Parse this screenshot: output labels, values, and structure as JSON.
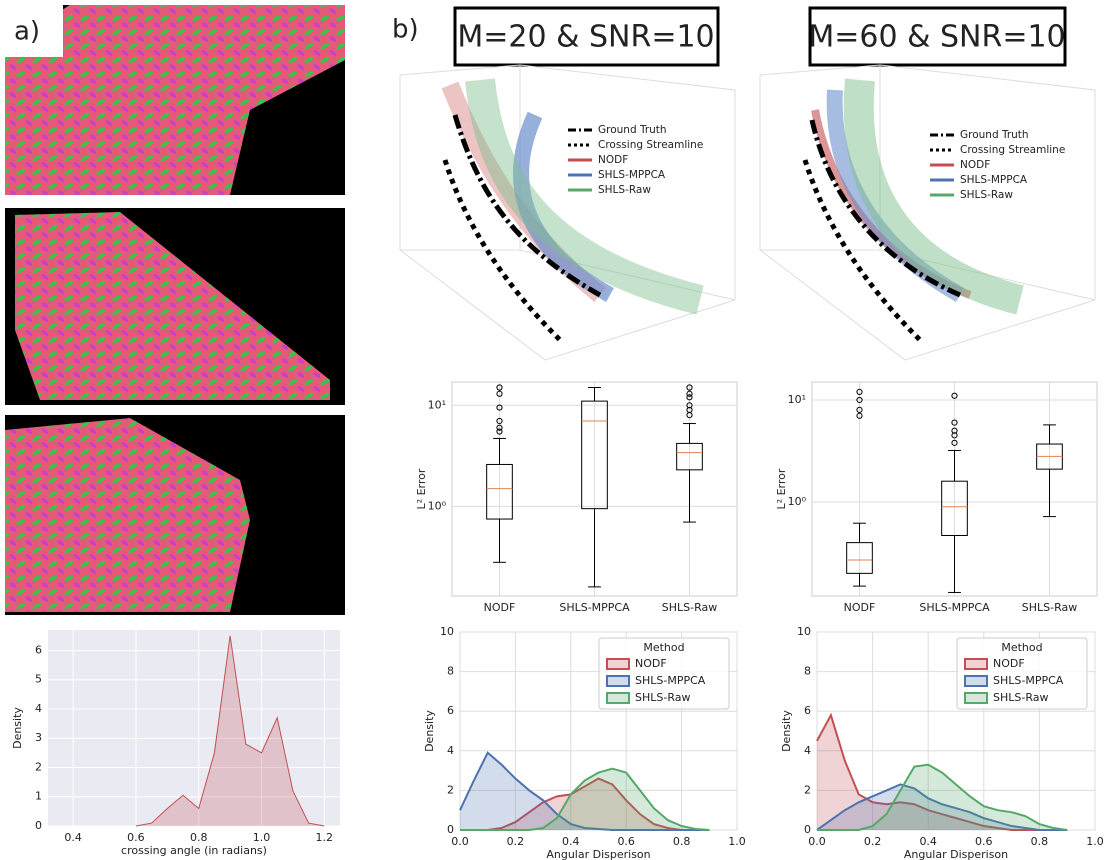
{
  "panel_labels": [
    "a)",
    "b)"
  ],
  "column_titles": [
    "M=20 & SNR=10",
    "M=60 & SNR=10"
  ],
  "streamline_legend": [
    "Ground Truth",
    "Crossing Streamline",
    "NODF",
    "SHLS-MPPCA",
    "SHLS-Raw"
  ],
  "chart_data": [
    {
      "type": "area",
      "style": "darkgrid",
      "grid": true,
      "x_label": "crossing angle (in radians)",
      "y_label": "Density",
      "x": [
        0.6,
        0.65,
        0.7,
        0.75,
        0.8,
        0.85,
        0.9,
        0.95,
        1.0,
        1.05,
        1.1,
        1.15,
        1.2
      ],
      "series": [
        {
          "color": "#c44e52",
          "values": [
            0,
            0.1,
            0.6,
            1.05,
            0.6,
            2.5,
            6.5,
            2.8,
            2.5,
            3.7,
            1.2,
            0.1,
            0
          ]
        }
      ],
      "xlim": [
        0.32,
        1.25
      ],
      "xticks": [
        0.4,
        0.6,
        0.8,
        {
          "value": 1.0,
          "label": "1.0"
        },
        1.2
      ],
      "ylim": [
        0,
        6.7
      ],
      "yticks": [
        0,
        1,
        2,
        3,
        4,
        5,
        6
      ]
    },
    {
      "type": "box",
      "yscale": "log",
      "grid": true,
      "y_label": "L² Error",
      "categories": [
        "NODF",
        "SHLS-MPPCA",
        "SHLS-Raw"
      ],
      "color": "#000000",
      "median_color": "#dd8452",
      "boxes": [
        {
          "whislo": 0.28,
          "q1": 0.75,
          "med": 1.5,
          "q3": 2.6,
          "whishi": 4.7,
          "fliers": [
            5.5,
            6,
            7,
            9.5,
            13,
            15
          ]
        },
        {
          "whislo": 0.16,
          "q1": 0.95,
          "med": 7,
          "q3": 11,
          "whishi": 15,
          "fliers": []
        },
        {
          "whislo": 0.7,
          "q1": 2.3,
          "med": 3.4,
          "q3": 4.2,
          "whishi": 6.6,
          "fliers": [
            8,
            9,
            10,
            12,
            13,
            15
          ]
        }
      ],
      "ylim": [
        0.13,
        17
      ],
      "yticks": [
        {
          "value": 1,
          "label": "10⁰"
        },
        {
          "value": 10,
          "label": "10¹"
        }
      ]
    },
    {
      "type": "box",
      "yscale": "log",
      "grid": true,
      "y_label": "L² Error",
      "categories": [
        "NODF",
        "SHLS-MPPCA",
        "SHLS-Raw"
      ],
      "color": "#000000",
      "median_color": "#dd8452",
      "boxes": [
        {
          "whislo": 0.15,
          "q1": 0.2,
          "med": 0.27,
          "q3": 0.4,
          "whishi": 0.62,
          "fliers": [
            7,
            8,
            10,
            12
          ]
        },
        {
          "whislo": 0.13,
          "q1": 0.47,
          "med": 0.9,
          "q3": 1.6,
          "whishi": 3.2,
          "fliers": [
            3.8,
            4.5,
            5,
            6,
            11
          ]
        },
        {
          "whislo": 0.72,
          "q1": 2.1,
          "med": 2.8,
          "q3": 3.7,
          "whishi": 5.7,
          "fliers": []
        }
      ],
      "ylim": [
        0.12,
        15
      ],
      "yticks": [
        {
          "value": 1,
          "label": "10⁰"
        },
        {
          "value": 10,
          "label": "10¹"
        }
      ]
    },
    {
      "type": "area",
      "grid": true,
      "x_label": "Angular Disperison",
      "y_label": "Density",
      "legend": "upper right",
      "legend_title": "Method",
      "x": [
        0,
        0.05,
        0.1,
        0.15,
        0.2,
        0.25,
        0.3,
        0.35,
        0.4,
        0.45,
        0.5,
        0.55,
        0.6,
        0.65,
        0.7,
        0.75,
        0.8,
        0.85,
        0.9
      ],
      "series": [
        {
          "name": "NODF",
          "color": "#c44e52",
          "values": [
            0,
            0,
            0,
            0.1,
            0.4,
            0.9,
            1.4,
            1.7,
            1.8,
            2.2,
            2.6,
            2.3,
            1.5,
            0.8,
            0.3,
            0.1,
            0,
            0,
            0
          ]
        },
        {
          "name": "SHLS-MPPCA",
          "color": "#4c72b0",
          "values": [
            1.0,
            2.5,
            3.9,
            3.3,
            2.6,
            2.0,
            1.5,
            0.8,
            0.3,
            0.1,
            0.05,
            0,
            0,
            0,
            0,
            0,
            0,
            0,
            0
          ]
        },
        {
          "name": "SHLS-Raw",
          "color": "#55a868",
          "values": [
            0,
            0,
            0,
            0,
            0,
            0,
            0.1,
            0.6,
            1.8,
            2.5,
            2.9,
            3.1,
            2.9,
            2.0,
            1.1,
            0.5,
            0.2,
            0.05,
            0
          ]
        }
      ],
      "xlim": [
        0,
        1
      ],
      "xticks": [
        {
          "value": 0,
          "label": "0.0"
        },
        0.2,
        0.4,
        0.6,
        0.8,
        {
          "value": 1,
          "label": "1.0"
        }
      ],
      "ylim": [
        0,
        10
      ],
      "yticks": [
        0,
        2,
        4,
        6,
        8,
        10
      ]
    },
    {
      "type": "area",
      "grid": true,
      "x_label": "Angular Disperison",
      "y_label": "Density",
      "legend": "upper right",
      "legend_title": "Method",
      "x": [
        0,
        0.05,
        0.1,
        0.15,
        0.2,
        0.25,
        0.3,
        0.35,
        0.4,
        0.45,
        0.5,
        0.55,
        0.6,
        0.65,
        0.7,
        0.75,
        0.8,
        0.85,
        0.9
      ],
      "series": [
        {
          "name": "NODF",
          "color": "#c44e52",
          "values": [
            4.5,
            5.8,
            3.5,
            1.8,
            1.4,
            1.3,
            1.4,
            1.3,
            1.0,
            0.8,
            0.6,
            0.4,
            0.2,
            0.1,
            0,
            0,
            0,
            0,
            0
          ]
        },
        {
          "name": "SHLS-MPPCA",
          "color": "#4c72b0",
          "values": [
            0,
            0.5,
            1.0,
            1.4,
            1.7,
            2.0,
            2.3,
            2.1,
            1.6,
            1.3,
            1.1,
            0.9,
            0.6,
            0.4,
            0.2,
            0.1,
            0,
            0,
            0
          ]
        },
        {
          "name": "SHLS-Raw",
          "color": "#55a868",
          "values": [
            0,
            0,
            0,
            0,
            0.2,
            0.8,
            2.0,
            3.2,
            3.3,
            2.9,
            2.3,
            1.7,
            1.2,
            1.0,
            0.9,
            0.7,
            0.3,
            0.1,
            0
          ]
        }
      ],
      "xlim": [
        0,
        1
      ],
      "xticks": [
        {
          "value": 0,
          "label": "0.0"
        },
        0.2,
        0.4,
        0.6,
        0.8,
        {
          "value": 1,
          "label": "1.0"
        }
      ],
      "ylim": [
        0,
        10
      ],
      "yticks": [
        0,
        2,
        4,
        6,
        8,
        10
      ]
    }
  ]
}
